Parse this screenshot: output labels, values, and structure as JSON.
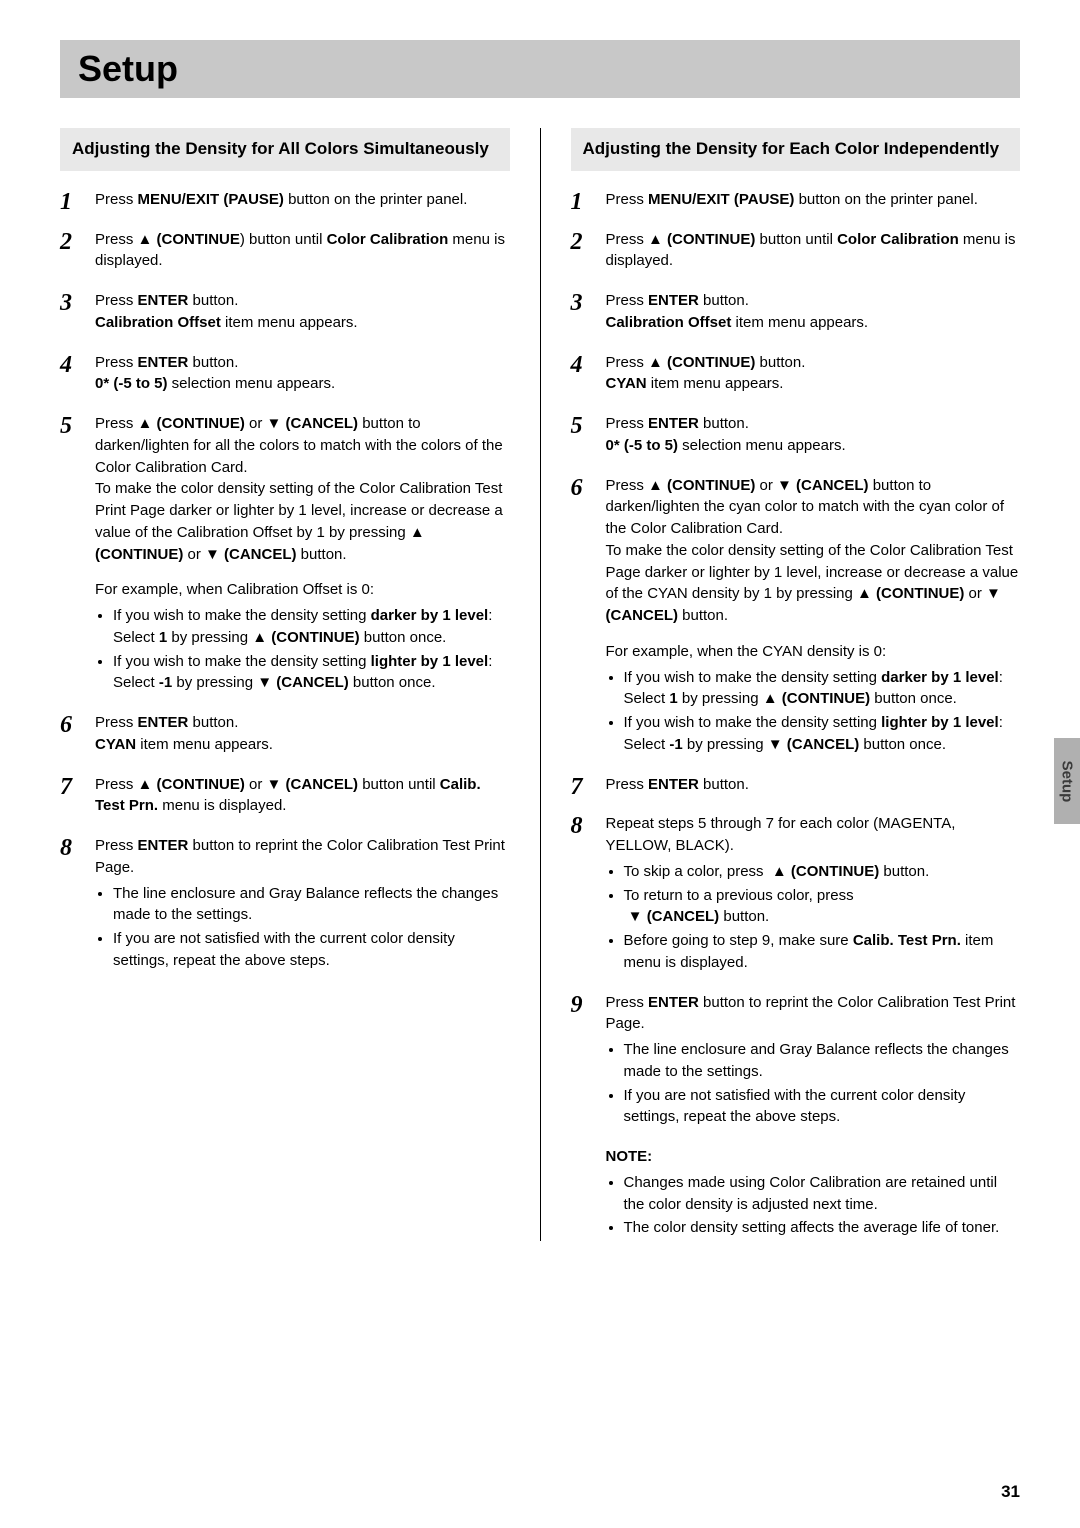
{
  "page_title": "Setup",
  "side_tab": "Setup",
  "page_number": "31",
  "left": {
    "header": "Adjusting the Density for All Colors Simultaneously",
    "steps": [
      {
        "html": "Press <span class='b'>MENU/EXIT (PAUSE)</span> button on the printer panel."
      },
      {
        "html": "Press ▲ <span class='b'>(CONTINUE</span>) button until <span class='b'>Color Calibration</span> menu is displayed."
      },
      {
        "html": "Press <span class='b'>ENTER</span> button.<br><span class='b'>Calibration Offset</span> item menu appears."
      },
      {
        "html": "Press <span class='b'>ENTER</span> button.<br><span class='b'>0* (-5 to 5)</span> selection menu appears."
      },
      {
        "html": "Press ▲ <span class='b'>(CONTINUE)</span> or ▼ <span class='b'>(CANCEL)</span> button to darken/lighten for all the colors to match with the colors of the Color Calibration Card.<br>To make the color density setting of the Color Calibration Test Print Page darker or lighter by 1 level, increase or decrease a value of the Calibration Offset by 1 by pressing ▲ <span class='b'>(CONTINUE)</span> or ▼ <span class='b'>(CANCEL)</span> button.<div class='sub-para'>For example, when Calibration Offset is 0:</div>",
        "bullets": [
          "If you wish to make the density setting <span class='b'>darker by 1 level</span>: Select <span class='b'>1</span> by pressing ▲ <span class='b'>(CONTINUE)</span> button once.",
          "If you wish to make the density setting <span class='b'>lighter by 1 level</span>: Select <span class='b'>-1</span> by pressing ▼ <span class='b'>(CANCEL)</span> button once."
        ]
      },
      {
        "html": "Press <span class='b'>ENTER</span> button.<br><span class='b'>CYAN</span> item menu appears."
      },
      {
        "html": "Press ▲ <span class='b'>(CONTINUE)</span> or ▼ <span class='b'>(CANCEL)</span> button until <span class='b'>Calib. Test Prn.</span> menu is displayed."
      },
      {
        "html": "Press <span class='b'>ENTER</span> button to reprint the Color Calibration Test Print Page.",
        "bullets": [
          "The line enclosure and Gray Balance reflects the changes made to the settings.",
          "If you are not satisfied with the current color density settings, repeat the above steps."
        ]
      }
    ]
  },
  "right": {
    "header": "Adjusting the Density for Each Color Independently",
    "steps": [
      {
        "html": "Press <span class='b'>MENU/EXIT (PAUSE)</span> button on the printer panel."
      },
      {
        "html": "Press ▲ <span class='b'>(CONTINUE)</span> button until <span class='b'>Color Calibration</span> menu is displayed."
      },
      {
        "html": "Press <span class='b'>ENTER</span> button.<br><span class='b'>Calibration Offset</span> item menu appears."
      },
      {
        "html": "Press ▲ <span class='b'>(CONTINUE)</span> button.<br><span class='b'>CYAN</span> item menu appears."
      },
      {
        "html": "Press <span class='b'>ENTER</span> button.<br><span class='b'>0* (-5 to 5)</span> selection menu appears."
      },
      {
        "html": "Press ▲ <span class='b'>(CONTINUE)</span> or ▼ <span class='b'>(CANCEL)</span> button to darken/lighten the cyan color to match with the cyan color of the Color Calibration Card.<br>To make the color density setting of the Color Calibration Test Page darker or lighter by 1 level, increase or decrease a value of the CYAN density by 1 by pressing ▲ <span class='b'>(CONTINUE)</span> or ▼ <span class='b'>(CANCEL)</span> button.<div class='sub-para'>For example, when the CYAN density is 0:</div>",
        "bullets": [
          "If you wish to make the density setting <span class='b'>darker by 1 level</span>: Select <span class='b'>1</span> by pressing ▲ <span class='b'>(CONTINUE)</span> button once.",
          "If you wish to make the density setting <span class='b'>lighter by 1 level</span>: Select <span class='b'>-1</span> by pressing ▼ <span class='b'>(CANCEL)</span> button once."
        ]
      },
      {
        "html": "Press <span class='b'>ENTER</span> button."
      },
      {
        "html": "Repeat steps 5 through 7 for each color (MAGENTA, YELLOW, BLACK).",
        "bullets": [
          "To skip a color, press &nbsp;▲ <span class='b'>(CONTINUE)</span> button.",
          "To return to a previous color, press<br>&nbsp;▼ <span class='b'>(CANCEL)</span> button.",
          "Before going to step 9, make sure <span class='b'>Calib. Test Prn.</span> item menu is displayed."
        ]
      },
      {
        "html": "Press <span class='b'>ENTER</span> button to reprint the Color Calibration Test Print Page.",
        "bullets": [
          "The line enclosure and Gray Balance reflects the changes made to the settings.",
          "If you are not satisfied with the current color density settings, repeat the above steps."
        ]
      }
    ],
    "note": {
      "label": "NOTE:",
      "bullets": [
        "Changes made using Color Calibration are retained until the color density is adjusted next time.",
        "The color density setting affects the average life of toner."
      ]
    }
  }
}
